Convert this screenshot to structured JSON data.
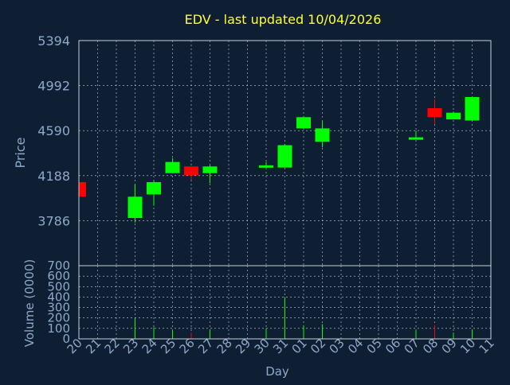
{
  "colors": {
    "background": "#0e1f33",
    "title": "#ffff33",
    "axis_text": "#8fa8c8",
    "grid": "#c8d0dc",
    "frame": "#c8d0dc",
    "up": "#00ff00",
    "down": "#ff0000",
    "volume_up": "#00ff00",
    "volume_down": "#ff0000"
  },
  "chart_data": {
    "type": "candlestick",
    "title": "EDV - last updated 10/04/2026",
    "xlabel": "Day",
    "price_panel": {
      "ylabel": "Price",
      "ylim": [
        3384,
        5394
      ],
      "yticks": [
        3786,
        4188,
        4590,
        4992,
        5394
      ],
      "ytick_labels": [
        "3786",
        "4188",
        "4590",
        "4992",
        "5394"
      ]
    },
    "volume_panel": {
      "ylabel": "Volume (0000)",
      "ylim": [
        0,
        700
      ],
      "yticks": [
        0,
        100,
        200,
        300,
        400,
        500,
        600,
        700
      ],
      "ytick_labels": [
        "0",
        "100",
        "200",
        "300",
        "400",
        "500",
        "600",
        "700"
      ]
    },
    "categories": [
      "20",
      "21",
      "22",
      "23",
      "24",
      "25",
      "26",
      "27",
      "28",
      "29",
      "30",
      "31",
      "01",
      "02",
      "03",
      "04",
      "05",
      "06",
      "07",
      "08",
      "09",
      "10",
      "11"
    ],
    "candles": [
      {
        "day": "20",
        "open": 4130,
        "high": 4130,
        "low": 4000,
        "close": 4000
      },
      {
        "day": "23",
        "open": 3810,
        "high": 4110,
        "low": 3770,
        "close": 4000
      },
      {
        "day": "24",
        "open": 4020,
        "high": 4140,
        "low": 3920,
        "close": 4130
      },
      {
        "day": "25",
        "open": 4210,
        "high": 4345,
        "low": 4210,
        "close": 4310
      },
      {
        "day": "26",
        "open": 4270,
        "high": 4270,
        "low": 4150,
        "close": 4190
      },
      {
        "day": "27",
        "open": 4210,
        "high": 4285,
        "low": 4120,
        "close": 4270
      },
      {
        "day": "30",
        "open": 4260,
        "high": 4310,
        "low": 4260,
        "close": 4280
      },
      {
        "day": "31",
        "open": 4260,
        "high": 4470,
        "low": 4260,
        "close": 4460
      },
      {
        "day": "01",
        "open": 4610,
        "high": 4720,
        "low": 4610,
        "close": 4710
      },
      {
        "day": "02",
        "open": 4490,
        "high": 4670,
        "low": 4440,
        "close": 4610
      },
      {
        "day": "07",
        "open": 4510,
        "high": 4590,
        "low": 4510,
        "close": 4530
      },
      {
        "day": "08",
        "open": 4790,
        "high": 4870,
        "low": 4650,
        "close": 4710
      },
      {
        "day": "09",
        "open": 4690,
        "high": 4760,
        "low": 4690,
        "close": 4750
      },
      {
        "day": "10",
        "open": 4680,
        "high": 4890,
        "low": 4680,
        "close": 4890
      }
    ],
    "volume": [
      {
        "day": "23",
        "value": 190,
        "color": "up"
      },
      {
        "day": "24",
        "value": 110,
        "color": "up"
      },
      {
        "day": "25",
        "value": 80,
        "color": "up"
      },
      {
        "day": "26",
        "value": 60,
        "color": "down"
      },
      {
        "day": "27",
        "value": 90,
        "color": "up"
      },
      {
        "day": "30",
        "value": 100,
        "color": "up"
      },
      {
        "day": "31",
        "value": 400,
        "color": "up"
      },
      {
        "day": "01",
        "value": 130,
        "color": "up"
      },
      {
        "day": "02",
        "value": 140,
        "color": "up"
      },
      {
        "day": "07",
        "value": 80,
        "color": "up"
      },
      {
        "day": "08",
        "value": 130,
        "color": "down"
      },
      {
        "day": "09",
        "value": 60,
        "color": "up"
      },
      {
        "day": "10",
        "value": 90,
        "color": "up"
      }
    ],
    "grid": true
  }
}
